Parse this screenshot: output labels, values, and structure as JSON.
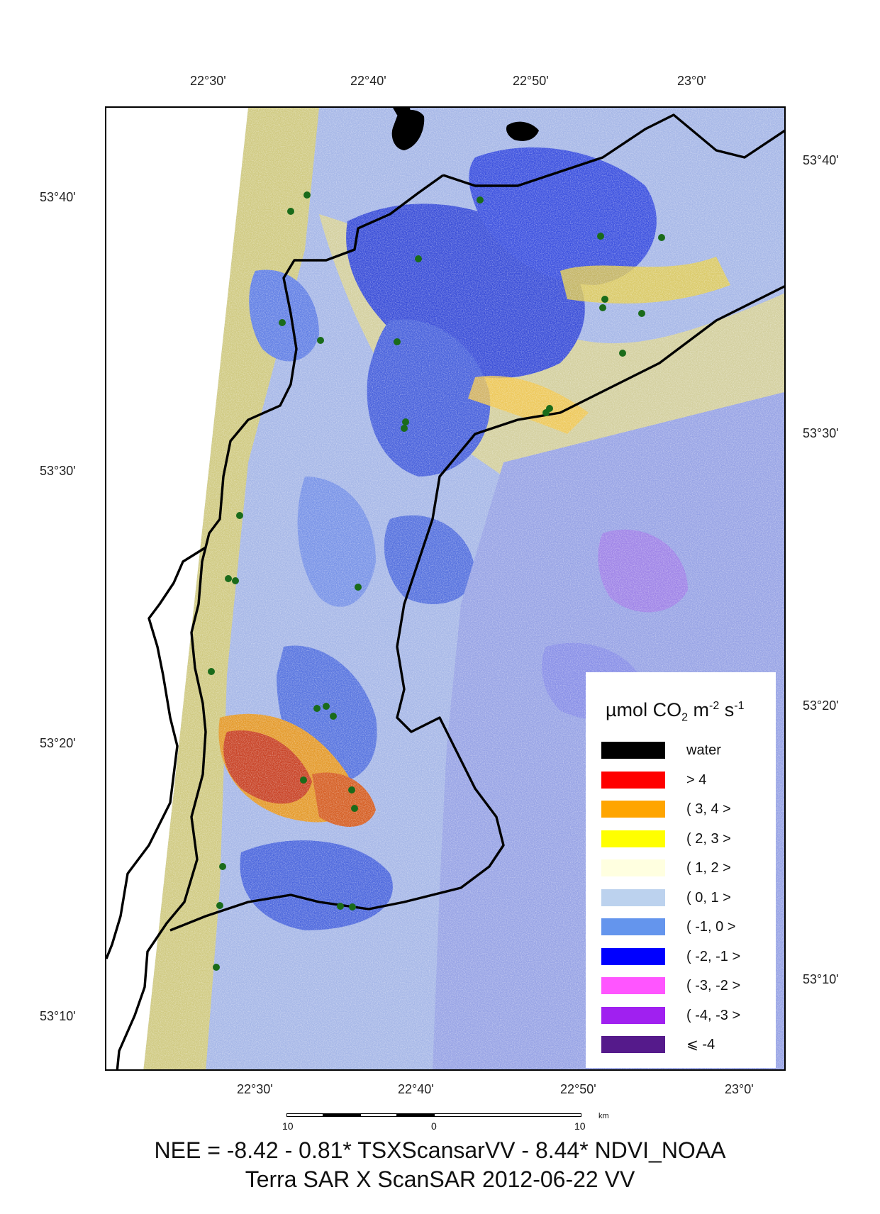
{
  "top_longitude_ticks": [
    "22°30'",
    "22°40'",
    "22°50'",
    "23°0'"
  ],
  "bottom_longitude_ticks": [
    "22°30'",
    "22°40'",
    "22°50'",
    "23°0'"
  ],
  "left_latitude_ticks": [
    "53°40'",
    "53°30'",
    "53°20'",
    "53°10'"
  ],
  "right_latitude_ticks": [
    "53°40'",
    "53°30'",
    "53°20'",
    "53°10'"
  ],
  "legend": {
    "title_prefix": "µmol CO",
    "title_sub": "2",
    "title_m": " m",
    "title_m_exp": "-2",
    "title_s": " s",
    "title_s_exp": "-1",
    "items": [
      {
        "label": "water",
        "color": "#000000"
      },
      {
        "label": "> 4",
        "color": "#ff0000"
      },
      {
        "label": "( 3, 4 >",
        "color": "#ffa500"
      },
      {
        "label": "( 2, 3 >",
        "color": "#ffff00"
      },
      {
        "label": "( 1, 2 >",
        "color": "#ffffe0"
      },
      {
        "label": "( 0, 1 >",
        "color": "#bcd2ee"
      },
      {
        "label": "( -1, 0 >",
        "color": "#6495ed"
      },
      {
        "label": "( -2, -1 >",
        "color": "#0000ff"
      },
      {
        "label": "( -3, -2 >",
        "color": "#ff55ff"
      },
      {
        "label": "( -4, -3 >",
        "color": "#a020f0"
      },
      {
        "label": "⩽ -4",
        "color": "#551a8b"
      }
    ]
  },
  "scale_bar": {
    "left_label": "10",
    "mid_label": "0",
    "right_label": "10",
    "unit": "km"
  },
  "formula": "NEE = -8.42 - 0.81* TSXScansarVV - 8.44* NDVI_NOAA",
  "subtitle": "Terra SAR X ScanSAR 2012-06-22 VV",
  "colors": {
    "border": "#000000",
    "sample_points": "#1a6b1a"
  }
}
